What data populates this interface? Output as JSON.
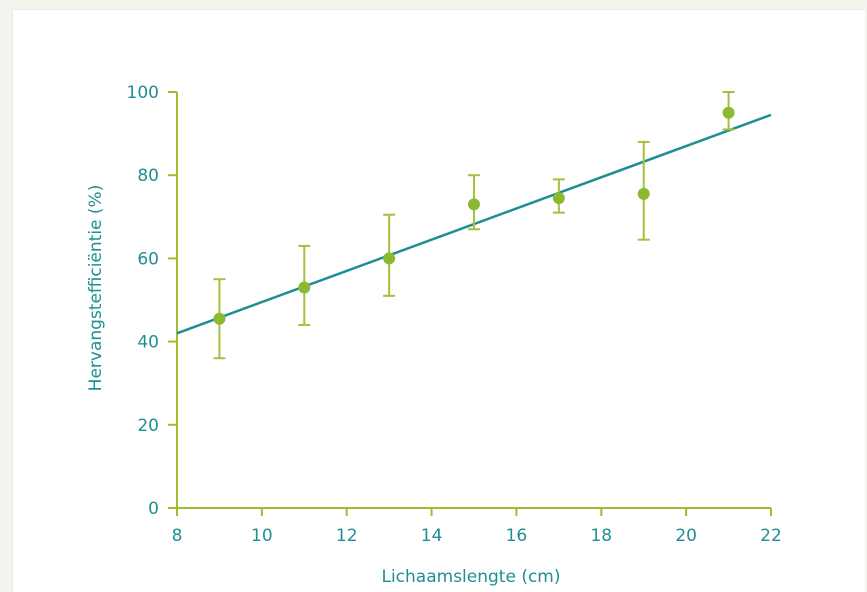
{
  "chart_data": {
    "type": "scatter",
    "title": "",
    "xlabel": "Lichaamslengte (cm)",
    "ylabel": "Hervangstefficiëntie (%)",
    "xlim": [
      8,
      22
    ],
    "ylim": [
      0,
      100
    ],
    "xticks": [
      "8",
      "10",
      "12",
      "14",
      "16",
      "18",
      "20",
      "22"
    ],
    "yticks": [
      "0",
      "20",
      "40",
      "60",
      "80",
      "100"
    ],
    "grid": false,
    "legend": "none",
    "points": [
      {
        "x": 9,
        "y": 45.5,
        "err_low": 36,
        "err_high": 55
      },
      {
        "x": 11,
        "y": 53,
        "err_low": 44,
        "err_high": 63
      },
      {
        "x": 13,
        "y": 60,
        "err_low": 51,
        "err_high": 70.5
      },
      {
        "x": 15,
        "y": 73,
        "err_low": 67,
        "err_high": 80
      },
      {
        "x": 17,
        "y": 74.5,
        "err_low": 71,
        "err_high": 79
      },
      {
        "x": 19,
        "y": 75.5,
        "err_low": 64.5,
        "err_high": 88
      },
      {
        "x": 21,
        "y": 95,
        "err_low": 91,
        "err_high": 100
      }
    ],
    "fit_line": {
      "x": [
        8,
        22
      ],
      "y": [
        42,
        94.5
      ]
    },
    "colors": {
      "axis": "#9dbd33",
      "points": "#8cb832",
      "errorbars": "#a7bf3a",
      "fit_line": "#1b8f92",
      "text": "#1f8f94"
    }
  }
}
